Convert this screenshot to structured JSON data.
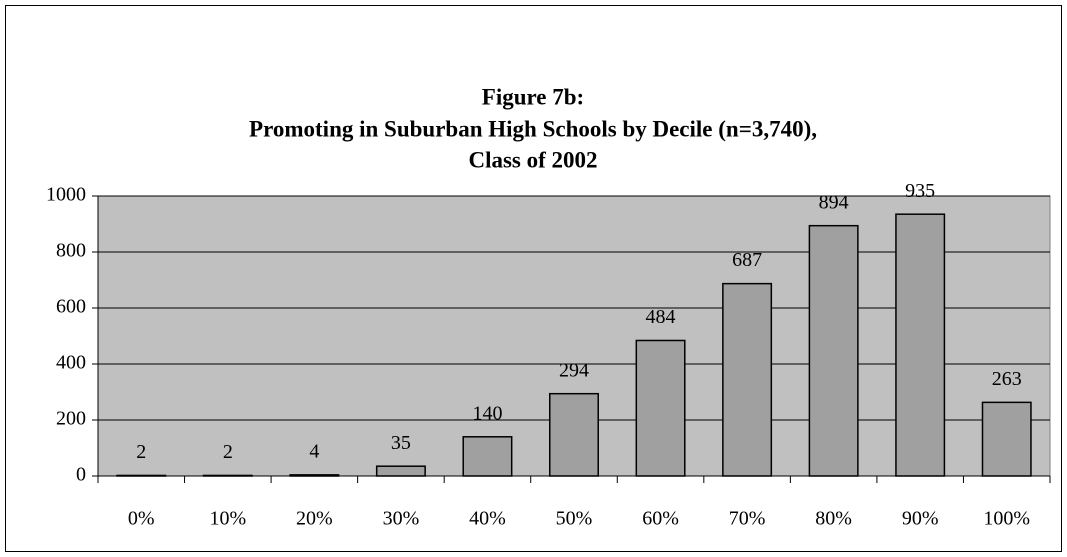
{
  "chart_data": {
    "type": "bar",
    "title": [
      "Figure 7b:",
      "Promoting in Suburban High Schools by Decile (n=3,740),",
      "Class of 2002"
    ],
    "categories": [
      "0%",
      "10%",
      "20%",
      "30%",
      "40%",
      "50%",
      "60%",
      "70%",
      "80%",
      "90%",
      "100%"
    ],
    "values": [
      2,
      2,
      4,
      35,
      140,
      294,
      484,
      687,
      894,
      935,
      263
    ],
    "color": "#a0a0a0",
    "ylim": [
      0,
      1000
    ],
    "yticks": [
      0,
      200,
      400,
      600,
      800,
      1000
    ],
    "grid": true
  }
}
